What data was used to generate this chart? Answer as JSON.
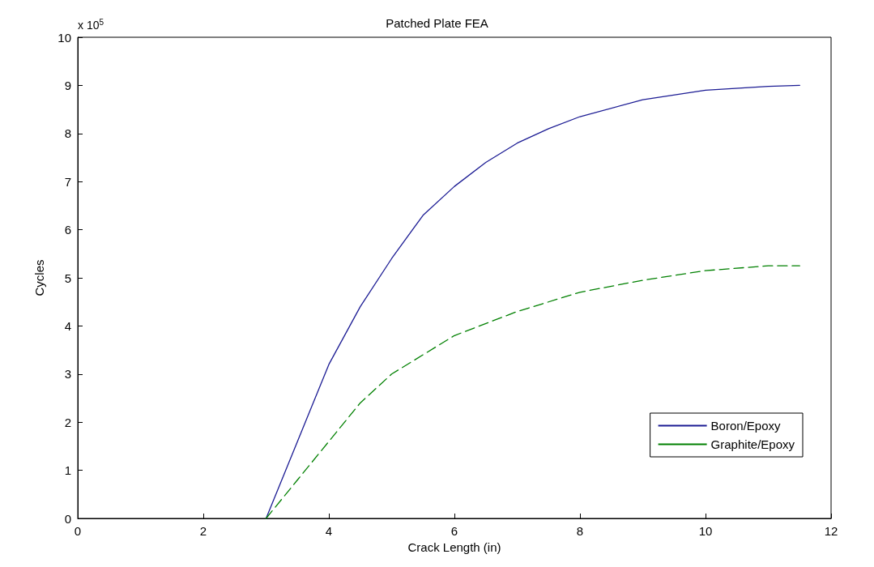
{
  "chart_data": {
    "type": "line",
    "title": "Patched Plate FEA",
    "xlabel": "Crack Length (in)",
    "ylabel": "Cycles",
    "annotations": [
      "x 10$^{5}$"
    ],
    "xlim": [
      0,
      12
    ],
    "xticks": [
      0,
      2,
      4,
      6,
      8,
      10,
      12
    ],
    "ylim": [
      0,
      10
    ],
    "yticks": [
      0,
      1,
      2,
      3,
      4,
      5,
      6,
      7,
      8,
      9,
      10
    ],
    "grid": false,
    "legend": "bottom right",
    "marker": "none",
    "series": [
      {
        "name": "Boron/Epoxy",
        "color": "#1c1c94",
        "line_style": "solid",
        "x": [
          3,
          3.5,
          4,
          4.5,
          5,
          5.5,
          6,
          6.5,
          7,
          7.5,
          8,
          9,
          10,
          11,
          11.5
        ],
        "values": [
          0,
          1.6,
          3.2,
          4.4,
          5.4,
          6.3,
          6.9,
          7.4,
          7.8,
          8.1,
          8.35,
          8.7,
          8.9,
          8.98,
          9.0
        ]
      },
      {
        "name": "Graphite/Epoxy",
        "color": "#008000",
        "line_style": "dashed",
        "x": [
          3,
          3.5,
          4,
          4.5,
          5,
          5.5,
          6,
          7,
          8,
          9,
          10,
          11,
          11.5
        ],
        "values": [
          0,
          0.8,
          1.6,
          2.4,
          3.0,
          3.4,
          3.8,
          4.3,
          4.7,
          4.95,
          5.15,
          5.25,
          5.25
        ]
      }
    ]
  }
}
